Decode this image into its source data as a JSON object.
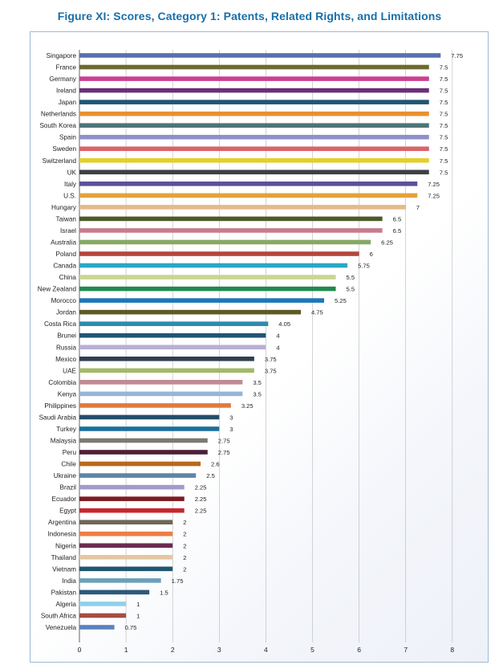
{
  "title": "Figure XI: Scores, Category 1: Patents, Related Rights, and Limitations",
  "chart_data": {
    "type": "bar",
    "orientation": "horizontal",
    "title": "Figure XI: Scores, Category 1: Patents, Related Rights, and Limitations",
    "xlabel": "",
    "ylabel": "",
    "xlim": [
      0,
      8
    ],
    "xticks": [
      "0",
      "1",
      "2",
      "3",
      "4",
      "5",
      "6",
      "7",
      "8"
    ],
    "grid": true,
    "legend": "none",
    "categories": [
      "Singapore",
      "France",
      "Germany",
      "Ireland",
      "Japan",
      "Netherlands",
      "South Korea",
      "Spain",
      "Sweden",
      "Switzerland",
      "UK",
      "Italy",
      "U.S.",
      "Hungary",
      "Taiwan",
      "Israel",
      "Australia",
      "Poland",
      "Canada",
      "China",
      "New Zealand",
      "Morocco",
      "Jordan",
      "Costa Rica",
      "Brunei",
      "Russia",
      "Mexico",
      "UAE",
      "Colombia",
      "Kenya",
      "Philippines",
      "Saudi Arabia",
      "Turkey",
      "Malaysia",
      "Peru",
      "Chile",
      "Ukraine",
      "Brazil",
      "Ecuador",
      "Egypt",
      "Argentina",
      "Indonesia",
      "Nigeria",
      "Thailand",
      "Vietnam",
      "India",
      "Pakistan",
      "Algeria",
      "South Africa",
      "Venezuela"
    ],
    "values": [
      7.75,
      7.5,
      7.5,
      7.5,
      7.5,
      7.5,
      7.5,
      7.5,
      7.5,
      7.5,
      7.5,
      7.25,
      7.25,
      7,
      6.5,
      6.5,
      6.25,
      6,
      5.75,
      5.5,
      5.5,
      5.25,
      4.75,
      4.05,
      4,
      4,
      3.75,
      3.75,
      3.5,
      3.5,
      3.25,
      3,
      3,
      2.75,
      2.75,
      2.6,
      2.5,
      2.25,
      2.25,
      2.25,
      2,
      2,
      2,
      2,
      2,
      1.75,
      1.5,
      1,
      1,
      0.75
    ],
    "value_labels": [
      "7.75",
      "7.5",
      "7.5",
      "7.5",
      "7.5",
      "7.5",
      "7.5",
      "7.5",
      "7.5",
      "7.5",
      "7.5",
      "7.25",
      "7.25",
      "7",
      "6.5",
      "6.5",
      "6.25",
      "6",
      "5.75",
      "5.5",
      "5.5",
      "5.25",
      "4.75",
      "4.05",
      "4",
      "4",
      "3.75",
      "3.75",
      "3.5",
      "3.5",
      "3.25",
      "3",
      "3",
      "2.75",
      "2.75",
      "2.6",
      "2.5",
      "2.25",
      "2.25",
      "2.25",
      "2",
      "2",
      "2",
      "2",
      "2",
      "1.75",
      "1.5",
      "1",
      "1",
      "0.75"
    ],
    "colors": [
      "#5b6fae",
      "#6d6b2e",
      "#c9418f",
      "#6a2f78",
      "#1f5672",
      "#e8902f",
      "#4d7478",
      "#8f8fca",
      "#d9646c",
      "#e3cf2b",
      "#3e3f44",
      "#5d4f99",
      "#e4a13a",
      "#e5b98a",
      "#4f5a2a",
      "#c87b8c",
      "#86a966",
      "#b5453d",
      "#2aa7c4",
      "#c9d592",
      "#20894f",
      "#1d77b8",
      "#5d5a25",
      "#2c8bb0",
      "#1f5672",
      "#b8afd6",
      "#2f3f4f",
      "#a4b86a",
      "#c18a94",
      "#96b5d9",
      "#e07b3e",
      "#244e6a",
      "#1b6f9b",
      "#7c7a70",
      "#4b1f38",
      "#b8681f",
      "#5a86a8",
      "#a49acb",
      "#7d1a22",
      "#c8262e",
      "#6e6658",
      "#ee7d45",
      "#6a2c52",
      "#e3c7a0",
      "#1f5670",
      "#6aa1ba",
      "#2c5a7c",
      "#8fd0e8",
      "#a64c3f",
      "#5a82bd"
    ]
  }
}
